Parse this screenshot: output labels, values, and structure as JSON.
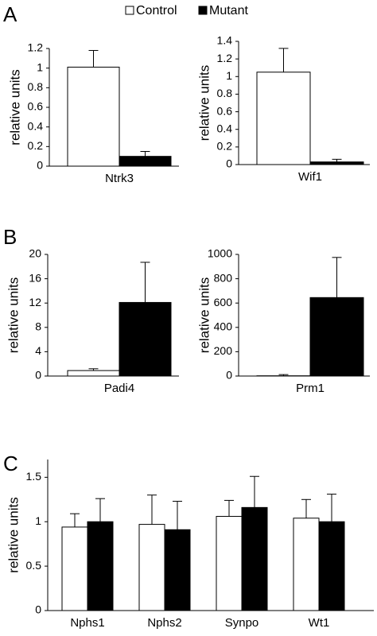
{
  "panels": [
    "A",
    "B",
    "C"
  ],
  "legend": [
    {
      "name": "Control",
      "color": "#ffffff"
    },
    {
      "name": "Mutant",
      "color": "#000000"
    }
  ],
  "chart_data": [
    {
      "type": "bar",
      "ylabel": "relative units",
      "categories": [
        "Ntrk3"
      ],
      "ylim": [
        0,
        1.2
      ],
      "yticks": [
        0,
        0.2,
        0.4,
        0.6,
        0.8,
        1,
        1.2
      ],
      "series": [
        {
          "values": [
            1.01
          ],
          "errors": [
            0.17
          ]
        },
        {
          "values": [
            0.1
          ],
          "errors": [
            0.05
          ]
        }
      ]
    },
    {
      "type": "bar",
      "ylabel": "relative units",
      "categories": [
        "Wif1"
      ],
      "ylim": [
        0,
        1.4
      ],
      "yticks": [
        0,
        0.2,
        0.4,
        0.6,
        0.8,
        1,
        1.2,
        1.4
      ],
      "series": [
        {
          "values": [
            1.05
          ],
          "errors": [
            0.27
          ]
        },
        {
          "values": [
            0.03
          ],
          "errors": [
            0.03
          ]
        }
      ]
    },
    {
      "type": "bar",
      "ylabel": "relative units",
      "categories": [
        "Padi4"
      ],
      "ylim": [
        0,
        20
      ],
      "yticks": [
        0,
        4,
        8,
        12,
        16,
        20
      ],
      "series": [
        {
          "values": [
            0.9
          ],
          "errors": [
            0.3
          ]
        },
        {
          "values": [
            12.1
          ],
          "errors": [
            6.6
          ]
        }
      ]
    },
    {
      "type": "bar",
      "ylabel": "relative units",
      "categories": [
        "Prm1"
      ],
      "ylim": [
        0,
        1000
      ],
      "yticks": [
        0,
        200,
        400,
        600,
        800,
        1000
      ],
      "series": [
        {
          "values": [
            2
          ],
          "errors": [
            10
          ]
        },
        {
          "values": [
            645
          ],
          "errors": [
            330
          ]
        }
      ]
    },
    {
      "type": "bar",
      "ylabel": "relative units",
      "categories": [
        "Nphs1",
        "Nphs2",
        "Synpo",
        "Wt1"
      ],
      "ylim": [
        0,
        1.7
      ],
      "yticks": [
        0,
        0.5,
        1,
        1.5
      ],
      "series": [
        {
          "values": [
            0.94,
            0.97,
            1.06,
            1.04
          ],
          "errors": [
            0.15,
            0.33,
            0.18,
            0.21
          ]
        },
        {
          "values": [
            1.0,
            0.91,
            1.16,
            1.0
          ],
          "errors": [
            0.26,
            0.32,
            0.35,
            0.31
          ]
        }
      ]
    }
  ]
}
